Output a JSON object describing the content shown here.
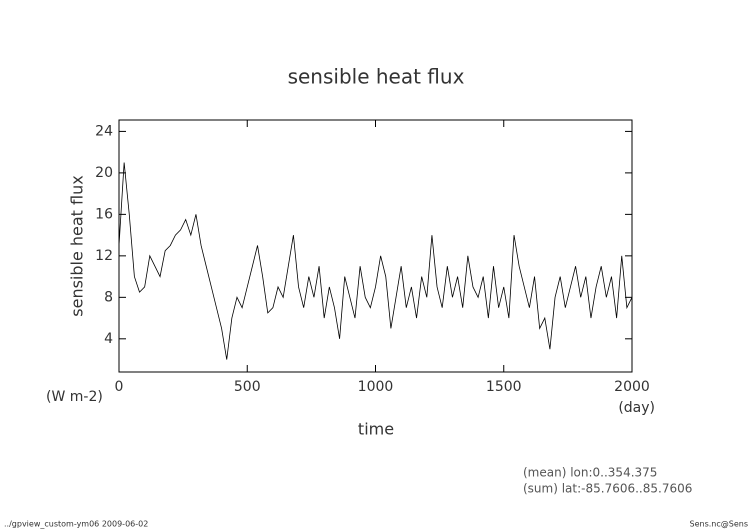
{
  "chart_data": {
    "type": "line",
    "title": "sensible heat flux",
    "ylabel": "sensible heat flux",
    "xlabel": "time",
    "yunit": "(W m-2)",
    "xunit": "(day)",
    "notes": [
      "(mean) lon:0..354.375",
      "(sum) lat:-85.7606..85.7606"
    ],
    "footer_left": "../gpview_custom-ym06  2009-06-02",
    "footer_right": "Sens.nc@Sens",
    "xlim": [
      0,
      2000
    ],
    "xticks": [
      0,
      500,
      1000,
      1500,
      2000
    ],
    "ylim": [
      0.8,
      25.1
    ],
    "yticks": [
      4,
      8,
      12,
      16,
      20,
      24
    ],
    "x": [
      0,
      20,
      40,
      60,
      80,
      100,
      120,
      140,
      160,
      180,
      200,
      220,
      240,
      260,
      280,
      300,
      320,
      340,
      360,
      380,
      400,
      420,
      440,
      460,
      480,
      500,
      520,
      540,
      560,
      580,
      600,
      620,
      640,
      660,
      680,
      700,
      720,
      740,
      760,
      780,
      800,
      820,
      840,
      860,
      880,
      900,
      920,
      940,
      960,
      980,
      1000,
      1020,
      1040,
      1060,
      1080,
      1100,
      1120,
      1140,
      1160,
      1180,
      1200,
      1220,
      1240,
      1260,
      1280,
      1300,
      1320,
      1340,
      1360,
      1380,
      1400,
      1420,
      1440,
      1460,
      1480,
      1500,
      1520,
      1540,
      1560,
      1580,
      1600,
      1620,
      1640,
      1660,
      1680,
      1700,
      1720,
      1740,
      1760,
      1780,
      1800,
      1820,
      1840,
      1860,
      1880,
      1900,
      1920,
      1940,
      1960,
      1980,
      2000
    ],
    "series": [
      {
        "color": "#000000",
        "values": [
          13,
          21,
          16,
          10,
          8.5,
          9,
          12,
          11,
          10,
          12.5,
          13,
          14,
          14.5,
          15.5,
          14,
          16,
          13,
          11,
          9,
          7,
          5,
          2,
          6,
          8,
          7,
          9,
          11,
          13,
          10,
          6.5,
          7,
          9,
          8,
          11,
          14,
          9,
          7,
          10,
          8,
          11,
          6,
          9,
          7,
          4,
          10,
          8,
          6,
          11,
          8,
          7,
          9,
          12,
          10,
          5,
          8,
          11,
          7,
          9,
          6,
          10,
          8,
          14,
          9,
          7,
          11,
          8,
          10,
          7,
          12,
          9,
          8,
          10,
          6,
          11,
          7,
          9,
          6,
          14,
          11,
          9,
          7,
          10,
          5,
          6,
          3,
          8,
          10,
          7,
          9,
          11,
          8,
          10,
          6,
          9,
          11,
          8,
          10,
          6,
          12,
          7,
          8
        ]
      }
    ]
  }
}
